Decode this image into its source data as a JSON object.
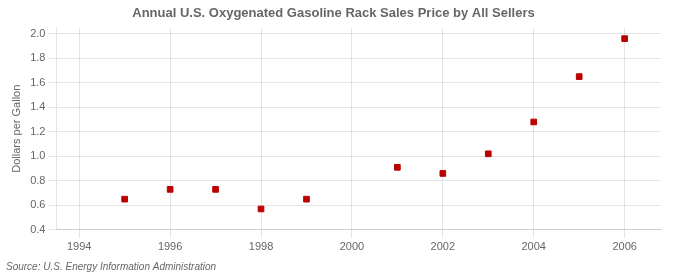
{
  "chart_data": {
    "type": "scatter",
    "title": "Annual U.S. Oxygenated Gasoline Rack Sales Price by All Sellers",
    "ylabel": "Dollars per Gallon",
    "annotations": [
      "Source: U.S. Energy Information Administration"
    ],
    "x": [
      1995,
      1996,
      1997,
      1998,
      1999,
      2001,
      2002,
      2003,
      2004,
      2005,
      2006
    ],
    "values": [
      0.65,
      0.73,
      0.73,
      0.57,
      0.65,
      0.91,
      0.86,
      1.02,
      1.28,
      1.65,
      1.96
    ],
    "color": "#bb0000",
    "marker": "square",
    "xlim": [
      1993.5,
      2006.8
    ],
    "ylim": [
      0.4,
      2.05
    ],
    "xticks": [
      1994,
      1996,
      1998,
      2000,
      2002,
      2004,
      2006
    ],
    "yticks": [
      0.4,
      0.6,
      0.8,
      {
        "value": 1,
        "label": "1.0"
      },
      1.2,
      1.4,
      1.6,
      1.8,
      {
        "value": 2,
        "label": "2.0"
      }
    ],
    "grid": true
  }
}
